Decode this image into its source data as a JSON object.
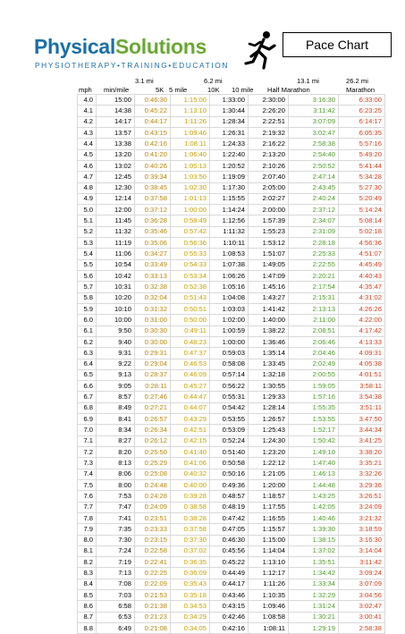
{
  "header": {
    "brand_part1": "Physical",
    "brand_part2": "Solutions",
    "tagline": "PHYSIOTHERAPY•TRAINING•EDUCATION",
    "title": "Pace Chart"
  },
  "columns": {
    "dist_5k": "3.1 mi",
    "dist_10k": "6.2 mi",
    "dist_half": "13.1 mi",
    "dist_marathon": "26.2 mi",
    "mph": "mph",
    "min_mile": "min/mile",
    "k5": "5K",
    "mile5": "5 mile",
    "k10": "10K",
    "mile10": "10 mile",
    "half": "Half Marathon",
    "marathon": "Marathon"
  },
  "rows": [
    [
      "4.0",
      "15:00",
      "0:46:30",
      "1:15:00",
      "1:33:00",
      "2:30:00",
      "3:16:30",
      "6:33:00"
    ],
    [
      "4.1",
      "14:38",
      "0:45:22",
      "1:13:10",
      "1:30:44",
      "2:26:20",
      "3:11:42",
      "6:23:25"
    ],
    [
      "4.2",
      "14:17",
      "0:44:17",
      "1:11:26",
      "1:28:34",
      "2:22:51",
      "3:07:09",
      "6:14:17"
    ],
    [
      "4.3",
      "13:57",
      "0:43:15",
      "1:09:46",
      "1:26:31",
      "2:19:32",
      "3:02:47",
      "6:05:35"
    ],
    [
      "4.4",
      "13:38",
      "0:42:16",
      "1:08:11",
      "1:24:33",
      "2:16:22",
      "2:58:38",
      "5:57:16"
    ],
    [
      "4.5",
      "13:20",
      "0:41:20",
      "1:06:40",
      "1:22:40",
      "2:13:20",
      "2:54:40",
      "5:49:20"
    ],
    [
      "4.6",
      "13:02",
      "0:40:26",
      "1:05:13",
      "1:20:52",
      "2:10:26",
      "2:50:52",
      "5:41:44"
    ],
    [
      "4.7",
      "12:45",
      "0:39:34",
      "1:03:50",
      "1:19:09",
      "2:07:40",
      "2:47:14",
      "5:34:28"
    ],
    [
      "4.8",
      "12:30",
      "0:38:45",
      "1:02:30",
      "1:17:30",
      "2:05:00",
      "2:43:45",
      "5:27:30"
    ],
    [
      "4.9",
      "12:14",
      "0:37:58",
      "1:01:13",
      "1:15:55",
      "2:02:27",
      "2:40:24",
      "5:20:49"
    ],
    [
      "5.0",
      "12:00",
      "0:37:12",
      "1:00:00",
      "1:14:24",
      "2:00:00",
      "2:37:12",
      "5:14:24"
    ],
    [
      "5.1",
      "11:45",
      "0:36:28",
      "0:58:49",
      "1:12:56",
      "1:57:39",
      "2:34:07",
      "5:08:14"
    ],
    [
      "5.2",
      "11:32",
      "0:35:46",
      "0:57:42",
      "1:11:32",
      "1:55:23",
      "2:31:09",
      "5:02:18"
    ],
    [
      "5.3",
      "11:19",
      "0:35:06",
      "0:56:36",
      "1:10:11",
      "1:53:12",
      "2:28:18",
      "4:56:36"
    ],
    [
      "5.4",
      "11:06",
      "0:34:27",
      "0:55:33",
      "1:08:53",
      "1:51:07",
      "2:25:33",
      "4:51:07"
    ],
    [
      "5.5",
      "10:54",
      "0:33:49",
      "0:54:33",
      "1:07:38",
      "1:49:05",
      "2:22:55",
      "4:45:49"
    ],
    [
      "5.6",
      "10:42",
      "0:33:13",
      "0:53:34",
      "1:06:26",
      "1:47:09",
      "2:20:21",
      "4:40:43"
    ],
    [
      "5.7",
      "10:31",
      "0:32:38",
      "0:52:38",
      "1:05:16",
      "1:45:16",
      "2:17:54",
      "4:35:47"
    ],
    [
      "5.8",
      "10:20",
      "0:32:04",
      "0:51:43",
      "1:04:08",
      "1:43:27",
      "2:15:31",
      "4:31:02"
    ],
    [
      "5.9",
      "10:10",
      "0:31:32",
      "0:50:51",
      "1:03:03",
      "1:41:42",
      "2:13:13",
      "4:26:26"
    ],
    [
      "6.0",
      "10:00",
      "0:31:00",
      "0:50:00",
      "1:02:00",
      "1:40:00",
      "2:11:00",
      "4:22:00"
    ],
    [
      "6.1",
      "9:50",
      "0:30:30",
      "0:49:11",
      "1:00:59",
      "1:38:22",
      "2:08:51",
      "4:17:42"
    ],
    [
      "6.2",
      "9:40",
      "0:30:00",
      "0:48:23",
      "1:00:00",
      "1:36:46",
      "2:06:46",
      "4:13:33"
    ],
    [
      "6.3",
      "9:31",
      "0:29:31",
      "0:47:37",
      "0:59:03",
      "1:35:14",
      "2:04:46",
      "4:09:31"
    ],
    [
      "6.4",
      "9:22",
      "0:29:04",
      "0:46:53",
      "0:58:08",
      "1:33:45",
      "2:02:49",
      "4:05:38"
    ],
    [
      "6.5",
      "9:13",
      "0:28:37",
      "0:46:09",
      "0:57:14",
      "1:32:18",
      "2:00:55",
      "4:01:51"
    ],
    [
      "6.6",
      "9:05",
      "0:28:11",
      "0:45:27",
      "0:56:22",
      "1:30:55",
      "1:59:05",
      "3:58:11"
    ],
    [
      "6.7",
      "8:57",
      "0:27:46",
      "0:44:47",
      "0:55:31",
      "1:29:33",
      "1:57:16",
      "3:54:38"
    ],
    [
      "6.8",
      "8:49",
      "0:27:21",
      "0:44:07",
      "0:54:42",
      "1:28:14",
      "1:55:35",
      "3:51:11"
    ],
    [
      "6.9",
      "8:41",
      "0:26:57",
      "0:43:29",
      "0:53:55",
      "1:26:57",
      "1:53:55",
      "3:47:50"
    ],
    [
      "7.0",
      "8:34",
      "0:26:34",
      "0:42:51",
      "0:53:09",
      "1:25:43",
      "1:52:17",
      "3:44:34"
    ],
    [
      "7.1",
      "8:27",
      "0:26:12",
      "0:42:15",
      "0:52:24",
      "1:24:30",
      "1:50:42",
      "3:41:25"
    ],
    [
      "7.2",
      "8:20",
      "0:25:50",
      "0:41:40",
      "0:51:40",
      "1:23:20",
      "1:49:10",
      "3:38:20"
    ],
    [
      "7.3",
      "8:13",
      "0:25:29",
      "0:41:06",
      "0:50:58",
      "1:22:12",
      "1:47:40",
      "3:35:21"
    ],
    [
      "7.4",
      "8:06",
      "0:25:08",
      "0:40:32",
      "0:50:16",
      "1:21:05",
      "1:46:13",
      "3:32:26"
    ],
    [
      "7.5",
      "8:00",
      "0:24:48",
      "0:40:00",
      "0:49:36",
      "1:20:00",
      "1:44:48",
      "3:29:36"
    ],
    [
      "7.6",
      "7:53",
      "0:24:28",
      "0:39:28",
      "0:48:57",
      "1:18:57",
      "1:43:25",
      "3:26:51"
    ],
    [
      "7.7",
      "7:47",
      "0:24:09",
      "0:38:58",
      "0:48:19",
      "1:17:55",
      "1:42:05",
      "3:24:09"
    ],
    [
      "7.8",
      "7:41",
      "0:23:51",
      "0:38:28",
      "0:47:42",
      "1:16:55",
      "1:40:46",
      "3:21:32"
    ],
    [
      "7.9",
      "7:35",
      "0:23:33",
      "0:37:58",
      "0:47:05",
      "1:15:57",
      "1:39:30",
      "3:18:59"
    ],
    [
      "8.0",
      "7:30",
      "0:23:15",
      "0:37:30",
      "0:46:30",
      "1:15:00",
      "1:38:15",
      "3:16:30"
    ],
    [
      "8.1",
      "7:24",
      "0:22:58",
      "0:37:02",
      "0:45:56",
      "1:14:04",
      "1:37:02",
      "3:14:04"
    ],
    [
      "8.2",
      "7:19",
      "0:22:41",
      "0:36:35",
      "0:45:22",
      "1:13:10",
      "1:35:51",
      "3:11:42"
    ],
    [
      "8.3",
      "7:13",
      "0:22:25",
      "0:36:09",
      "0:44:49",
      "1:12:17",
      "1:34:42",
      "3:09:24"
    ],
    [
      "8.4",
      "7:08",
      "0:22:09",
      "0:35:43",
      "0:44:17",
      "1:11:26",
      "1:33:34",
      "3:07:09"
    ],
    [
      "8.5",
      "7:03",
      "0:21:53",
      "0:35:18",
      "0:43:46",
      "1:10:35",
      "1:32:29",
      "3:04:56"
    ],
    [
      "8.6",
      "6:58",
      "0:21:38",
      "0:34:53",
      "0:43:15",
      "1:09:46",
      "1:31:24",
      "3:02:47"
    ],
    [
      "8.7",
      "6:53",
      "0:21:23",
      "0:34:29",
      "0:42:46",
      "1:08:58",
      "1:30:21",
      "3:00:41"
    ],
    [
      "8.8",
      "6:49",
      "0:21:08",
      "0:34:05",
      "0:42:16",
      "1:08:11",
      "1:29:19",
      "2:58:38"
    ]
  ],
  "colors": {
    "brand_blue": "#1a6fa8",
    "brand_green": "#6aa835",
    "k5_text": "#b8860b",
    "mile5_text": "#c5a000",
    "half_text": "#4f9a2a",
    "marathon_text": "#d0401c"
  },
  "icons": {
    "logo": "runner-icon"
  }
}
